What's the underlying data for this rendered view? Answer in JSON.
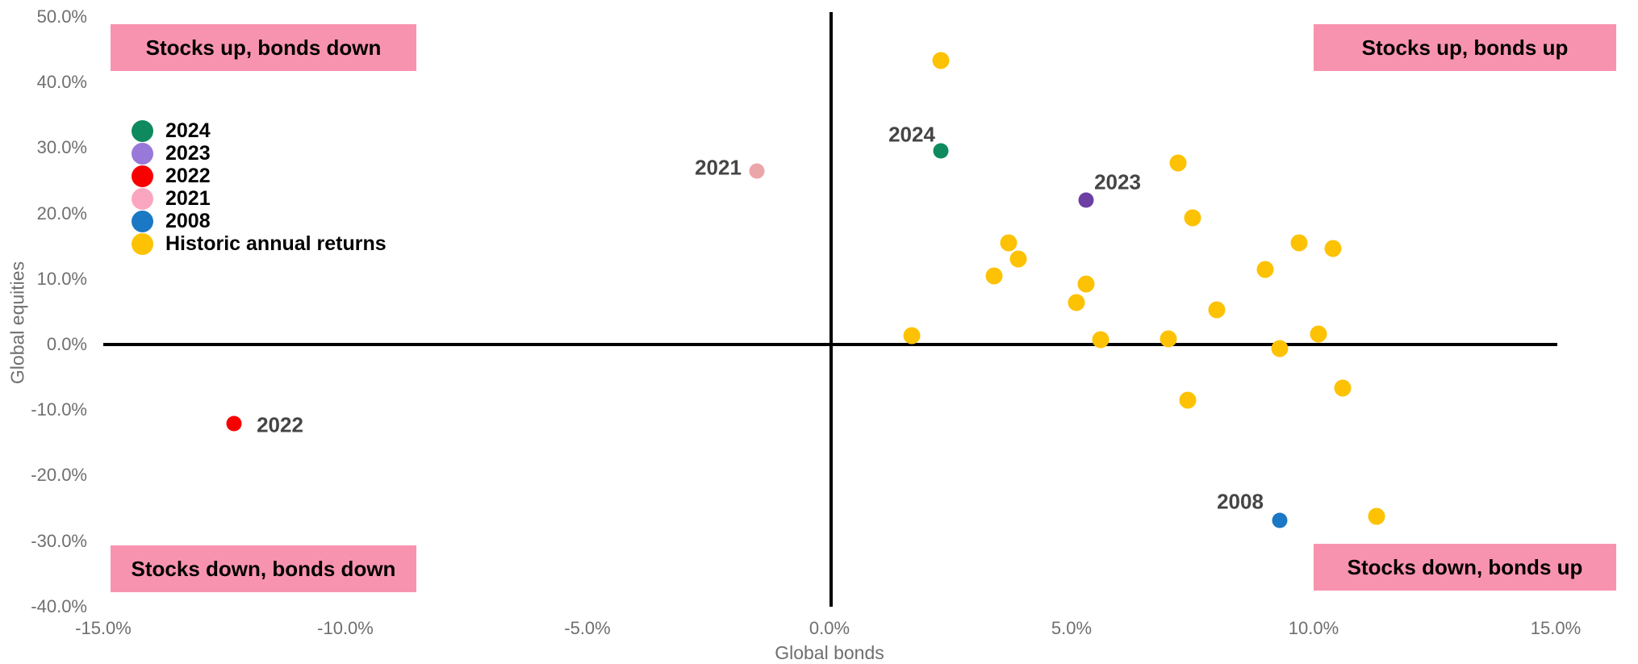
{
  "chart_data": {
    "type": "scatter",
    "title": "",
    "xlabel": "Global bonds",
    "ylabel": "Global equities",
    "xlim": [
      -15,
      15
    ],
    "ylim": [
      -40,
      50
    ],
    "grid": false,
    "legend_position": "upper-left-inside",
    "x_ticks": [
      {
        "value": -15,
        "label": "-15.0%"
      },
      {
        "value": -10,
        "label": "-10.0%"
      },
      {
        "value": -5,
        "label": "-5.0%"
      },
      {
        "value": 0,
        "label": "0.0%"
      },
      {
        "value": 5,
        "label": "5.0%"
      },
      {
        "value": 10,
        "label": "10.0%"
      },
      {
        "value": 15,
        "label": "15.0%"
      }
    ],
    "y_ticks": [
      {
        "value": 50,
        "label": "50.0%"
      },
      {
        "value": 40,
        "label": "40.0%"
      },
      {
        "value": 30,
        "label": "30.0%"
      },
      {
        "value": 20,
        "label": "20.0%"
      },
      {
        "value": 10,
        "label": "10.0%"
      },
      {
        "value": 0,
        "label": "0.0%"
      },
      {
        "value": -10,
        "label": "-10.0%"
      },
      {
        "value": -20,
        "label": "-20.0%"
      },
      {
        "value": -30,
        "label": "-30.0%"
      },
      {
        "value": -40,
        "label": "-40.0%"
      }
    ],
    "quadrants": [
      {
        "position": "top-left",
        "text": "Stocks up, bonds down"
      },
      {
        "position": "top-right",
        "text": "Stocks up, bonds up"
      },
      {
        "position": "bottom-left",
        "text": "Stocks down, bonds down"
      },
      {
        "position": "bottom-right",
        "text": "Stocks down, bonds up"
      }
    ],
    "legend": [
      {
        "label": "2024",
        "color": "#0E8A5E"
      },
      {
        "label": "2023",
        "color": "#9878D8"
      },
      {
        "label": "2022",
        "color": "#F90000"
      },
      {
        "label": "2021",
        "color": "#FBA6C1"
      },
      {
        "label": "2008",
        "color": "#1B78C4"
      },
      {
        "label": "Historic annual returns",
        "color": "#FCC203"
      }
    ],
    "series": [
      {
        "name": "2024",
        "color": "#0E8A5E",
        "size": 19,
        "points": [
          {
            "x": 2.3,
            "y": 29.5
          }
        ],
        "point_label": {
          "text": "2024",
          "dx": -36,
          "dy": -20
        }
      },
      {
        "name": "2023",
        "color": "#6B3FA4",
        "size": 19,
        "points": [
          {
            "x": 5.3,
            "y": 22.1
          }
        ],
        "point_label": {
          "text": "2023",
          "dx": 39,
          "dy": -22
        }
      },
      {
        "name": "2022",
        "color": "#F90000",
        "size": 19,
        "points": [
          {
            "x": -12.3,
            "y": -12.1
          }
        ],
        "point_label": {
          "text": "2022",
          "dx": 57,
          "dy": 2
        }
      },
      {
        "name": "2021",
        "color": "#EBA6A9",
        "size": 19,
        "points": [
          {
            "x": -1.5,
            "y": 26.5
          }
        ],
        "point_label": {
          "text": "2021",
          "dx": -48,
          "dy": -4
        }
      },
      {
        "name": "2008",
        "color": "#1B78C4",
        "size": 19,
        "points": [
          {
            "x": 9.3,
            "y": -26.8
          }
        ],
        "point_label": {
          "text": "2008",
          "dx": -49,
          "dy": -23
        }
      },
      {
        "name": "Historic annual returns",
        "color": "#FCC203",
        "size": 21,
        "points": [
          {
            "x": 2.3,
            "y": 43.3
          },
          {
            "x": 7.2,
            "y": 27.7
          },
          {
            "x": 7.5,
            "y": 19.3
          },
          {
            "x": 3.7,
            "y": 15.5
          },
          {
            "x": 3.9,
            "y": 13.0
          },
          {
            "x": 3.4,
            "y": 10.5
          },
          {
            "x": 5.3,
            "y": 9.2
          },
          {
            "x": 5.1,
            "y": 6.4
          },
          {
            "x": 8.0,
            "y": 5.3
          },
          {
            "x": 1.7,
            "y": 1.4
          },
          {
            "x": 5.6,
            "y": 0.7
          },
          {
            "x": 7.0,
            "y": 0.9
          },
          {
            "x": 9.0,
            "y": 11.4
          },
          {
            "x": 9.7,
            "y": 15.5
          },
          {
            "x": 10.4,
            "y": 14.7
          },
          {
            "x": 10.1,
            "y": 1.6
          },
          {
            "x": 9.3,
            "y": -0.6
          },
          {
            "x": 7.4,
            "y": -8.5
          },
          {
            "x": 10.6,
            "y": -6.7
          },
          {
            "x": 11.3,
            "y": -26.2
          }
        ]
      }
    ],
    "colors": {
      "quadrant_bg": "#F893AF",
      "axis": "#000000",
      "tick_text": "#6F6F6F",
      "annotation_text": "#454545"
    }
  }
}
